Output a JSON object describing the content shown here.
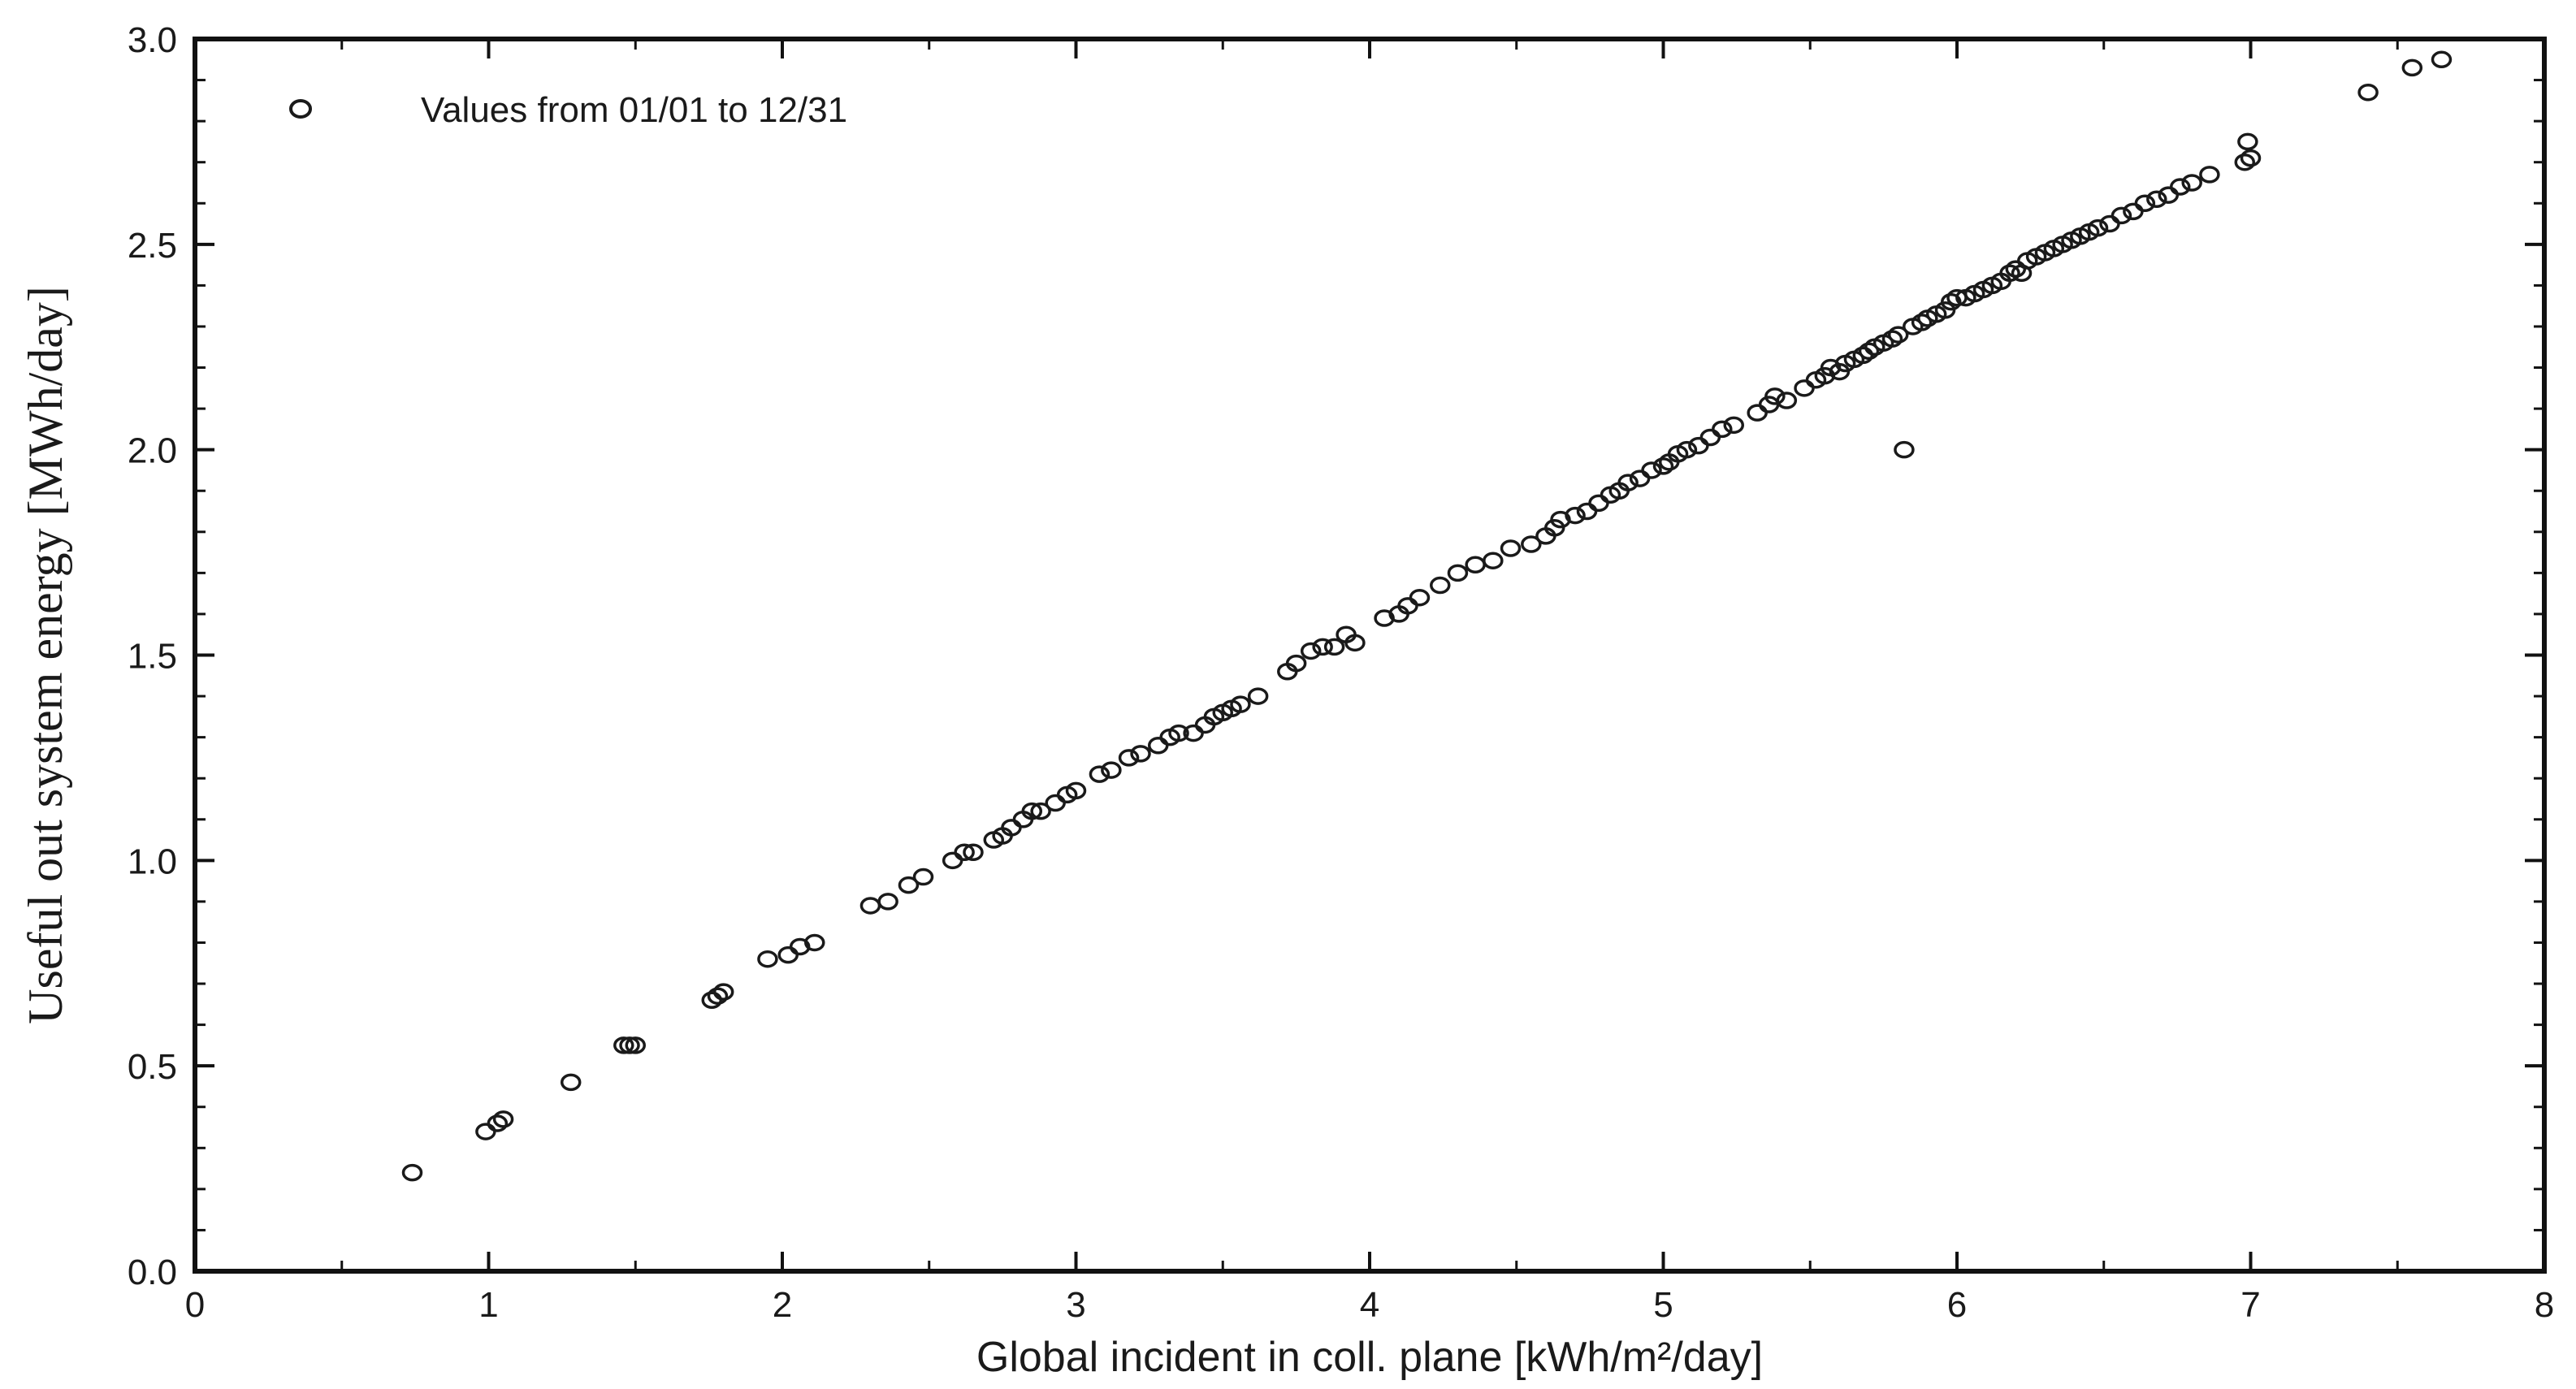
{
  "chart_data": {
    "type": "scatter",
    "xlabel": "Global incident in coll. plane [kWh/m²/day]",
    "ylabel": "Useful out system energy [MWh/day]",
    "xlim": [
      0,
      8
    ],
    "ylim": [
      0,
      3
    ],
    "x_ticks": [
      "0",
      "1",
      "2",
      "3",
      "4",
      "5",
      "6",
      "7",
      "8"
    ],
    "y_ticks": [
      "0.0",
      "0.5",
      "1.0",
      "1.5",
      "2.0",
      "2.5",
      "3.0"
    ],
    "grid": false,
    "legend_position": "top-left",
    "marker": "open-circle",
    "colors": {
      "marker": "#1a1a1a",
      "axis": "#111111",
      "background": "#ffffff"
    },
    "series": [
      {
        "name": "Values from 01/01 to 12/31",
        "points": [
          [
            0.74,
            0.24
          ],
          [
            0.99,
            0.34
          ],
          [
            1.03,
            0.36
          ],
          [
            1.05,
            0.37
          ],
          [
            1.28,
            0.46
          ],
          [
            1.46,
            0.55
          ],
          [
            1.48,
            0.55
          ],
          [
            1.5,
            0.55
          ],
          [
            1.76,
            0.66
          ],
          [
            1.78,
            0.67
          ],
          [
            1.8,
            0.68
          ],
          [
            1.95,
            0.76
          ],
          [
            2.02,
            0.77
          ],
          [
            2.06,
            0.79
          ],
          [
            2.11,
            0.8
          ],
          [
            2.3,
            0.89
          ],
          [
            2.36,
            0.9
          ],
          [
            2.43,
            0.94
          ],
          [
            2.48,
            0.96
          ],
          [
            2.58,
            1.0
          ],
          [
            2.62,
            1.02
          ],
          [
            2.65,
            1.02
          ],
          [
            2.72,
            1.05
          ],
          [
            2.75,
            1.06
          ],
          [
            2.78,
            1.08
          ],
          [
            2.82,
            1.1
          ],
          [
            2.85,
            1.12
          ],
          [
            2.88,
            1.12
          ],
          [
            2.93,
            1.14
          ],
          [
            2.97,
            1.16
          ],
          [
            3.0,
            1.17
          ],
          [
            3.08,
            1.21
          ],
          [
            3.12,
            1.22
          ],
          [
            3.18,
            1.25
          ],
          [
            3.22,
            1.26
          ],
          [
            3.28,
            1.28
          ],
          [
            3.32,
            1.3
          ],
          [
            3.35,
            1.31
          ],
          [
            3.4,
            1.31
          ],
          [
            3.44,
            1.33
          ],
          [
            3.47,
            1.35
          ],
          [
            3.5,
            1.36
          ],
          [
            3.53,
            1.37
          ],
          [
            3.56,
            1.38
          ],
          [
            3.62,
            1.4
          ],
          [
            3.72,
            1.46
          ],
          [
            3.75,
            1.48
          ],
          [
            3.8,
            1.51
          ],
          [
            3.84,
            1.52
          ],
          [
            3.88,
            1.52
          ],
          [
            3.92,
            1.55
          ],
          [
            3.95,
            1.53
          ],
          [
            4.05,
            1.59
          ],
          [
            4.1,
            1.6
          ],
          [
            4.13,
            1.62
          ],
          [
            4.17,
            1.64
          ],
          [
            4.24,
            1.67
          ],
          [
            4.3,
            1.7
          ],
          [
            4.36,
            1.72
          ],
          [
            4.42,
            1.73
          ],
          [
            4.48,
            1.76
          ],
          [
            4.55,
            1.77
          ],
          [
            4.6,
            1.79
          ],
          [
            4.63,
            1.81
          ],
          [
            4.65,
            1.83
          ],
          [
            4.7,
            1.84
          ],
          [
            4.74,
            1.85
          ],
          [
            4.78,
            1.87
          ],
          [
            4.82,
            1.89
          ],
          [
            4.85,
            1.9
          ],
          [
            4.88,
            1.92
          ],
          [
            4.92,
            1.93
          ],
          [
            4.96,
            1.95
          ],
          [
            5.0,
            1.96
          ],
          [
            5.02,
            1.97
          ],
          [
            5.05,
            1.99
          ],
          [
            5.08,
            2.0
          ],
          [
            5.12,
            2.01
          ],
          [
            5.16,
            2.03
          ],
          [
            5.2,
            2.05
          ],
          [
            5.24,
            2.06
          ],
          [
            5.32,
            2.09
          ],
          [
            5.36,
            2.11
          ],
          [
            5.38,
            2.13
          ],
          [
            5.42,
            2.12
          ],
          [
            5.48,
            2.15
          ],
          [
            5.52,
            2.17
          ],
          [
            5.55,
            2.18
          ],
          [
            5.57,
            2.2
          ],
          [
            5.6,
            2.19
          ],
          [
            5.62,
            2.21
          ],
          [
            5.65,
            2.22
          ],
          [
            5.68,
            2.23
          ],
          [
            5.7,
            2.24
          ],
          [
            5.72,
            2.25
          ],
          [
            5.75,
            2.26
          ],
          [
            5.78,
            2.27
          ],
          [
            5.8,
            2.28
          ],
          [
            5.82,
            2.0
          ],
          [
            5.85,
            2.3
          ],
          [
            5.88,
            2.31
          ],
          [
            5.9,
            2.32
          ],
          [
            5.93,
            2.33
          ],
          [
            5.96,
            2.34
          ],
          [
            5.98,
            2.36
          ],
          [
            6.0,
            2.37
          ],
          [
            6.03,
            2.37
          ],
          [
            6.06,
            2.38
          ],
          [
            6.09,
            2.39
          ],
          [
            6.12,
            2.4
          ],
          [
            6.15,
            2.41
          ],
          [
            6.18,
            2.43
          ],
          [
            6.2,
            2.44
          ],
          [
            6.22,
            2.43
          ],
          [
            6.24,
            2.46
          ],
          [
            6.27,
            2.47
          ],
          [
            6.3,
            2.48
          ],
          [
            6.33,
            2.49
          ],
          [
            6.36,
            2.5
          ],
          [
            6.39,
            2.51
          ],
          [
            6.42,
            2.52
          ],
          [
            6.45,
            2.53
          ],
          [
            6.48,
            2.54
          ],
          [
            6.52,
            2.55
          ],
          [
            6.56,
            2.57
          ],
          [
            6.6,
            2.58
          ],
          [
            6.64,
            2.6
          ],
          [
            6.68,
            2.61
          ],
          [
            6.72,
            2.62
          ],
          [
            6.76,
            2.64
          ],
          [
            6.8,
            2.65
          ],
          [
            6.86,
            2.67
          ],
          [
            6.98,
            2.7
          ],
          [
            7.0,
            2.71
          ],
          [
            6.99,
            2.75
          ],
          [
            7.4,
            2.87
          ],
          [
            7.55,
            2.93
          ],
          [
            7.65,
            2.95
          ]
        ]
      }
    ]
  }
}
